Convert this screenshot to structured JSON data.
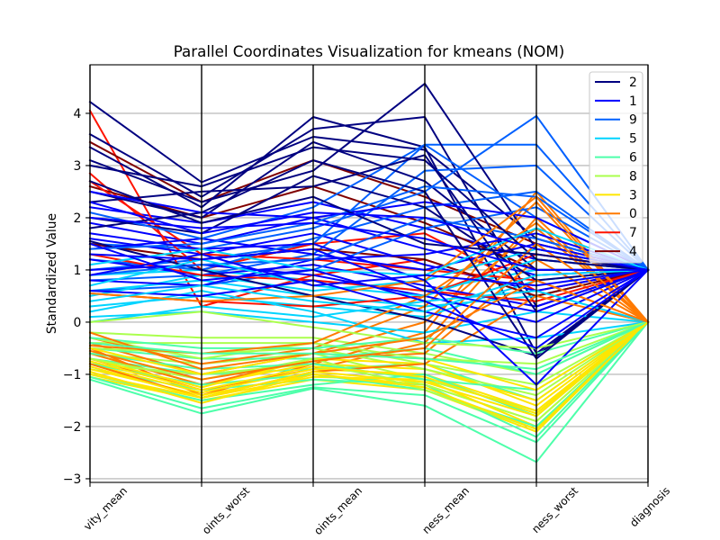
{
  "chart_data": {
    "type": "line",
    "variant": "parallel-coordinates",
    "title": "Parallel Coordinates Visualization for kmeans (NOM)",
    "xlabel": "",
    "ylabel": "Standardized Value",
    "categories": [
      "vity_mean",
      "oints_worst",
      "oints_mean",
      "ness_mean",
      "ness_worst",
      "diagnosis"
    ],
    "ylim": [
      -3.07,
      4.93
    ],
    "yticks": [
      -3,
      -2,
      -1,
      0,
      1,
      2,
      3,
      4
    ],
    "ytick_labels": [
      "−3",
      "−2",
      "−1",
      "0",
      "1",
      "2",
      "3",
      "4"
    ],
    "grid": true,
    "legend": "top-right",
    "series": [
      {
        "name": "2",
        "color": "#000080",
        "lines": [
          [
            4.22,
            2.68,
            3.55,
            3.3,
            1.6,
            1
          ],
          [
            3.6,
            2.4,
            3.7,
            3.93,
            0.3,
            1
          ],
          [
            3.35,
            2.2,
            3.93,
            3.35,
            -0.6,
            1
          ],
          [
            3.1,
            2.3,
            2.9,
            4.57,
            1.4,
            1
          ],
          [
            2.5,
            2.0,
            3.45,
            2.7,
            1.0,
            1
          ],
          [
            2.0,
            1.7,
            2.8,
            2.2,
            0.8,
            1
          ],
          [
            1.55,
            1.0,
            0.5,
            0.05,
            -0.65,
            1
          ],
          [
            2.3,
            2.5,
            2.6,
            3.2,
            0.2,
            1
          ],
          [
            1.8,
            2.1,
            3.1,
            2.5,
            -0.7,
            1
          ],
          [
            3.0,
            2.6,
            3.35,
            3.1,
            1.2,
            1
          ],
          [
            2.7,
            1.9,
            2.4,
            1.5,
            1.3,
            1
          ]
        ]
      },
      {
        "name": "1",
        "color": "#0000ff",
        "lines": [
          [
            2.2,
            1.9,
            2.3,
            1.8,
            1.2,
            1
          ],
          [
            1.9,
            1.5,
            2.0,
            1.4,
            0.9,
            1
          ],
          [
            1.6,
            1.3,
            1.7,
            1.1,
            0.6,
            1
          ],
          [
            1.4,
            1.6,
            1.3,
            1.0,
            1.5,
            1
          ],
          [
            1.2,
            0.9,
            1.1,
            0.7,
            0.3,
            1
          ],
          [
            1.0,
            1.1,
            0.9,
            0.5,
            0.0,
            1
          ],
          [
            0.8,
            0.7,
            1.2,
            1.3,
            1.7,
            1
          ],
          [
            2.5,
            2.1,
            2.0,
            2.3,
            2.0,
            1
          ],
          [
            1.7,
            1.4,
            1.5,
            0.8,
            -1.2,
            1
          ],
          [
            0.6,
            0.5,
            0.8,
            0.2,
            -0.3,
            1
          ],
          [
            1.3,
            1.2,
            1.4,
            0.6,
            0.2,
            1
          ],
          [
            2.0,
            1.8,
            1.9,
            1.6,
            1.0,
            1
          ],
          [
            1.5,
            0.8,
            1.0,
            0.4,
            -0.5,
            1
          ],
          [
            2.3,
            1.7,
            2.1,
            2.0,
            1.4,
            1
          ],
          [
            0.9,
            1.3,
            0.7,
            0.9,
            0.7,
            1
          ]
        ]
      },
      {
        "name": "9",
        "color": "#0060ff",
        "lines": [
          [
            1.0,
            1.2,
            1.5,
            3.4,
            3.4,
            1
          ],
          [
            1.5,
            1.4,
            1.8,
            2.5,
            3.95,
            1
          ],
          [
            0.8,
            0.9,
            1.3,
            2.9,
            3.0,
            1
          ],
          [
            1.2,
            1.0,
            1.6,
            2.2,
            2.5,
            1
          ],
          [
            0.6,
            0.7,
            1.0,
            1.8,
            2.2,
            1
          ],
          [
            2.1,
            1.6,
            2.2,
            3.4,
            2.0,
            1
          ],
          [
            0.9,
            1.1,
            1.2,
            2.0,
            1.6,
            1
          ],
          [
            1.4,
            1.5,
            1.9,
            2.6,
            2.4,
            1
          ]
        ]
      },
      {
        "name": "5",
        "color": "#00d4ff",
        "lines": [
          [
            0.9,
            1.0,
            0.8,
            0.6,
            1.0,
            1
          ],
          [
            0.6,
            0.8,
            0.5,
            0.3,
            0.5,
            1
          ],
          [
            0.3,
            0.5,
            0.3,
            0.1,
            0.8,
            1
          ],
          [
            0.1,
            0.2,
            0.0,
            -0.2,
            0.2,
            0
          ],
          [
            0.5,
            0.9,
            0.6,
            0.8,
            1.4,
            1
          ],
          [
            0.2,
            0.6,
            0.2,
            -0.4,
            -0.3,
            0
          ],
          [
            0.7,
            1.2,
            0.7,
            0.5,
            1.2,
            1
          ],
          [
            0.0,
            0.3,
            0.1,
            0.4,
            0.6,
            0
          ],
          [
            1.1,
            1.4,
            1.0,
            0.9,
            1.8,
            1
          ],
          [
            0.4,
            0.7,
            0.4,
            0.2,
            0.9,
            1
          ]
        ]
      },
      {
        "name": "6",
        "color": "#4dffaa",
        "lines": [
          [
            -1.1,
            -1.75,
            -1.27,
            -1.6,
            -2.68,
            0
          ],
          [
            -0.9,
            -1.3,
            -1.1,
            -1.2,
            -2.2,
            0
          ],
          [
            -0.7,
            -1.0,
            -0.9,
            -0.8,
            -1.5,
            0
          ],
          [
            -1.0,
            -1.5,
            -1.2,
            -1.0,
            -1.8,
            0
          ],
          [
            -0.5,
            -0.7,
            -0.7,
            -0.5,
            -1.0,
            0
          ],
          [
            -0.8,
            -1.2,
            -1.0,
            -1.3,
            -2.0,
            0
          ],
          [
            -0.3,
            -0.5,
            -0.5,
            -0.3,
            -0.6,
            0
          ],
          [
            -0.6,
            -0.9,
            -0.8,
            -1.1,
            -1.3,
            0
          ],
          [
            -1.05,
            -1.65,
            -1.25,
            -1.4,
            -2.3,
            0
          ],
          [
            -0.4,
            -0.6,
            -0.6,
            -0.7,
            -0.9,
            0
          ]
        ]
      },
      {
        "name": "8",
        "color": "#aaff4d",
        "lines": [
          [
            -0.4,
            -0.4,
            -0.4,
            -0.8,
            -1.2,
            0
          ],
          [
            -0.6,
            -0.8,
            -0.6,
            -1.1,
            -1.7,
            0
          ],
          [
            -0.2,
            -0.3,
            -0.3,
            -0.6,
            -1.0,
            0
          ],
          [
            -0.8,
            -1.0,
            -0.8,
            -1.2,
            -1.9,
            0
          ],
          [
            -0.5,
            -0.6,
            -0.5,
            -0.9,
            -1.4,
            0
          ],
          [
            -0.3,
            -0.7,
            -0.4,
            -0.7,
            -0.8,
            0
          ],
          [
            -0.7,
            -1.1,
            -0.7,
            -1.3,
            -2.05,
            0
          ],
          [
            0.0,
            0.2,
            -0.1,
            -0.4,
            -0.5,
            0
          ]
        ]
      },
      {
        "name": "3",
        "color": "#ffe600",
        "lines": [
          [
            -1.05,
            -1.5,
            -1.1,
            -1.3,
            -2.1,
            0
          ],
          [
            -0.9,
            -1.4,
            -1.0,
            -1.2,
            -1.9,
            0
          ],
          [
            -0.8,
            -1.35,
            -0.9,
            -1.0,
            -1.7,
            0
          ],
          [
            -0.6,
            -1.2,
            -0.8,
            -0.9,
            -1.5,
            0
          ],
          [
            -1.0,
            -1.45,
            -1.05,
            -1.1,
            -2.0,
            0
          ],
          [
            -0.7,
            -1.25,
            -0.7,
            -0.8,
            -1.6,
            0
          ],
          [
            -0.95,
            -1.55,
            -1.0,
            -1.25,
            -2.05,
            0
          ],
          [
            -0.5,
            -1.0,
            -0.6,
            -0.7,
            -1.3,
            0
          ],
          [
            -0.85,
            -1.45,
            -0.95,
            -1.15,
            -1.8,
            0
          ],
          [
            -0.75,
            -1.3,
            -0.85,
            -1.05,
            -1.75,
            0
          ]
        ]
      },
      {
        "name": "0",
        "color": "#ff7a00",
        "lines": [
          [
            -0.5,
            -1.4,
            -0.8,
            -0.2,
            2.5,
            0
          ],
          [
            -0.7,
            -1.3,
            -0.9,
            -0.4,
            2.0,
            0
          ],
          [
            -0.4,
            -1.0,
            -0.6,
            0.0,
            1.8,
            0
          ],
          [
            -0.6,
            -1.2,
            -0.7,
            -0.6,
            1.2,
            0
          ],
          [
            -0.3,
            -0.8,
            -0.5,
            0.3,
            2.3,
            0
          ],
          [
            -0.8,
            -1.45,
            -0.95,
            -0.8,
            0.5,
            0
          ],
          [
            -0.45,
            -0.6,
            -0.4,
            0.5,
            1.9,
            0
          ],
          [
            0.55,
            0.4,
            0.5,
            0.8,
            2.4,
            0
          ],
          [
            -0.2,
            -0.9,
            -0.6,
            -0.3,
            0.8,
            0
          ],
          [
            -0.55,
            -1.1,
            -0.75,
            -0.5,
            1.5,
            0
          ]
        ]
      },
      {
        "name": "7",
        "color": "#ff1300",
        "lines": [
          [
            4.05,
            0.3,
            0.9,
            1.2,
            0.5,
            1
          ],
          [
            2.85,
            1.0,
            1.5,
            1.7,
            0.6,
            1
          ],
          [
            2.7,
            1.3,
            1.2,
            1.0,
            0.8,
            0
          ],
          [
            0.55,
            0.4,
            0.3,
            0.5,
            1.3,
            1
          ],
          [
            1.3,
            0.9,
            0.8,
            0.6,
            0.4,
            1
          ]
        ]
      },
      {
        "name": "4",
        "color": "#800000",
        "lines": [
          [
            3.45,
            2.3,
            3.1,
            2.4,
            1.5,
            1
          ],
          [
            2.6,
            2.0,
            2.6,
            1.9,
            1.0,
            1
          ],
          [
            1.5,
            1.2,
            1.4,
            1.2,
            0.5,
            1
          ]
        ]
      }
    ]
  }
}
